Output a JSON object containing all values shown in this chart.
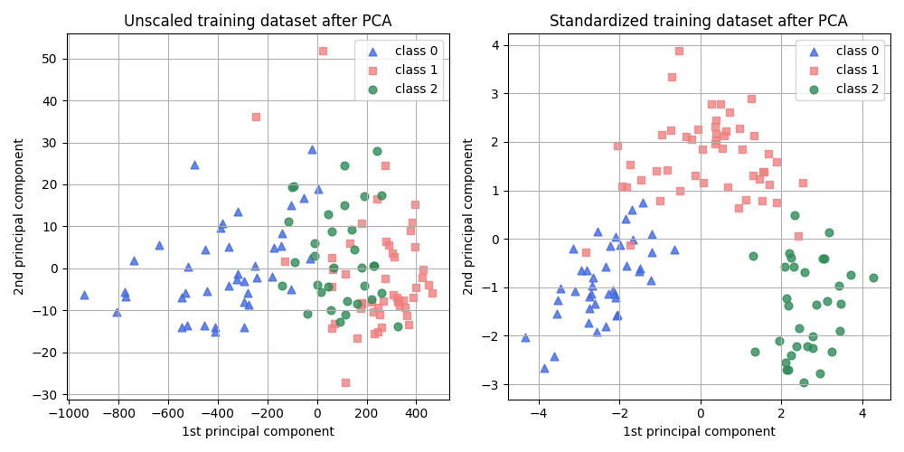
{
  "title_left": "Unscaled training dataset after PCA",
  "title_right": "Standardized training dataset after PCA",
  "xlabel": "1st principal component",
  "ylabel": "2nd principal component",
  "class_colors": [
    "#4169E1",
    "#F08080",
    "#2E8B57"
  ],
  "class_labels": [
    "class 0",
    "class 1",
    "class 2"
  ],
  "class_markers": [
    "^",
    "s",
    "o"
  ],
  "marker_size": 40,
  "figsize": [
    10,
    5
  ],
  "dpi": 100,
  "flip_left_pc1": true,
  "flip_left_pc2": false,
  "flip_right_pc1": true,
  "flip_right_pc2": true
}
